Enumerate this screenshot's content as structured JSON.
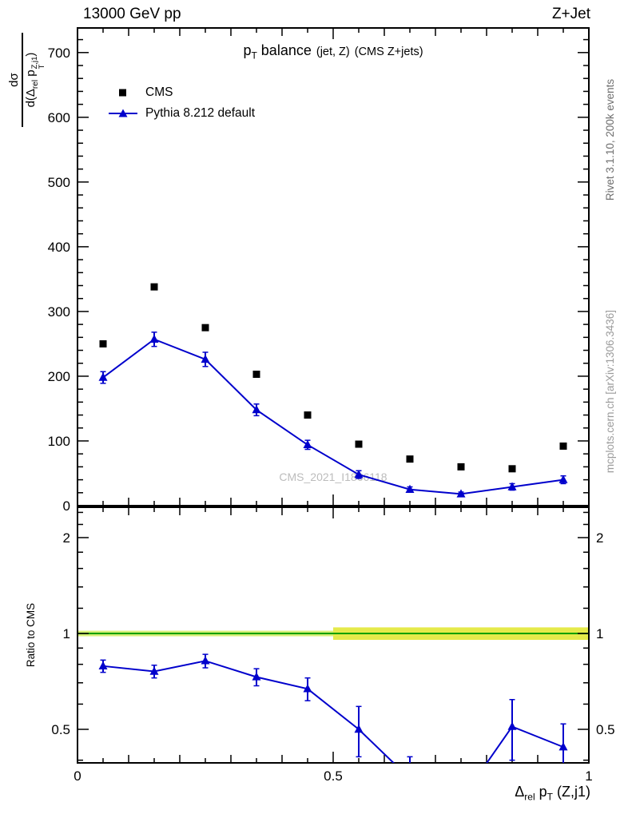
{
  "header": {
    "left": "13000 GeV pp",
    "right": "Z+Jet"
  },
  "title": {
    "p": "p",
    "p_sub": "T",
    "rest": " balance",
    "small1": "(jet, Z)",
    "small2": "(CMS Z+jets)"
  },
  "legend": {
    "items": [
      {
        "label": "CMS",
        "marker": "square",
        "color": "#000000"
      },
      {
        "label": "Pythia 8.212 default",
        "marker": "triangle-line",
        "color": "#0000cc"
      }
    ]
  },
  "watermark": "CMS_2021_I1866118",
  "side_notes": {
    "top_right": "Rivet 3.1.10,  200k events",
    "bottom_right": "mcplots.cern.ch [arXiv:1306.3436]"
  },
  "axes": {
    "y_main_label": {
      "numerator": "dσ",
      "den_pre": "d(Δ",
      "den_sub1": "rel",
      "den_mid": " p",
      "den_sup": "Z,j1",
      "den_sub2": "T",
      "den_post": ")"
    },
    "y_ratio_label": "Ratio to CMS",
    "x_label": {
      "delta": "Δ",
      "delta_sub": "rel",
      "p": " p",
      "p_sub": "T",
      "rest": " (Z,j1)"
    }
  },
  "chart_data": {
    "type": "line",
    "title": "pT balance (jet, Z) (CMS Z+jets)",
    "xlabel": "Δrel pT (Z,j1)",
    "ylabel_main": "dσ/d(Δrel pT^{Z,j1})",
    "ylabel_ratio": "Ratio to CMS",
    "xlim": [
      0,
      1
    ],
    "xticks_major": [
      0,
      0.5,
      1
    ],
    "xtick_labels": [
      "0",
      "0.5",
      "1"
    ],
    "main_panel": {
      "ylim": [
        0,
        738
      ],
      "yticks": [
        0,
        100,
        200,
        300,
        400,
        500,
        600,
        700
      ],
      "minor_step": 20,
      "series": [
        {
          "name": "CMS",
          "marker": "square",
          "line": false,
          "color": "#000000",
          "x": [
            0.05,
            0.15,
            0.25,
            0.35,
            0.45,
            0.55,
            0.65,
            0.75,
            0.85,
            0.95
          ],
          "y": [
            250,
            338,
            275,
            203,
            140,
            95,
            72,
            60,
            57,
            92
          ],
          "yerr": [
            0,
            0,
            0,
            0,
            0,
            0,
            0,
            0,
            0,
            0
          ]
        },
        {
          "name": "Pythia 8.212 default",
          "marker": "triangle",
          "line": true,
          "color": "#0000cc",
          "x": [
            0.05,
            0.15,
            0.25,
            0.35,
            0.45,
            0.55,
            0.65,
            0.75,
            0.85,
            0.95
          ],
          "y": [
            198,
            257,
            226,
            148,
            94,
            48,
            25,
            18,
            29,
            40
          ],
          "yerr": [
            9,
            11,
            11,
            9,
            7,
            6,
            4,
            3,
            5,
            6
          ]
        }
      ]
    },
    "ratio_panel": {
      "yscale": "log",
      "ylim": [
        0.392,
        2.49
      ],
      "yticks": [
        0.5,
        1,
        2
      ],
      "ytick_labels": [
        "0.5",
        "1",
        "2"
      ],
      "minor_ticks": [
        0.4,
        0.6,
        0.7,
        0.8,
        0.9,
        1.2,
        1.4,
        1.6,
        1.8,
        2.2,
        2.4
      ],
      "reference": {
        "line_y": 1,
        "line_color": "#00a000",
        "band": [
          {
            "x0": 0,
            "x1": 0.5,
            "lo": 0.98,
            "hi": 1.02,
            "color": "#d7ef77"
          },
          {
            "x0": 0.5,
            "x1": 1,
            "lo": 0.955,
            "hi": 1.045,
            "color": "#e5ea4a"
          }
        ]
      },
      "series": [
        {
          "name": "Pythia/CMS",
          "marker": "triangle",
          "line": true,
          "color": "#0000cc",
          "x": [
            0.05,
            0.15,
            0.25,
            0.35,
            0.45,
            0.55,
            0.65,
            0.75,
            0.85,
            0.95
          ],
          "y": [
            0.79,
            0.76,
            0.82,
            0.73,
            0.67,
            0.5,
            0.35,
            0.3,
            0.51,
            0.44
          ],
          "yerr": [
            0.035,
            0.035,
            0.04,
            0.045,
            0.055,
            0.09,
            0.06,
            0.05,
            0.11,
            0.08
          ]
        }
      ]
    }
  }
}
